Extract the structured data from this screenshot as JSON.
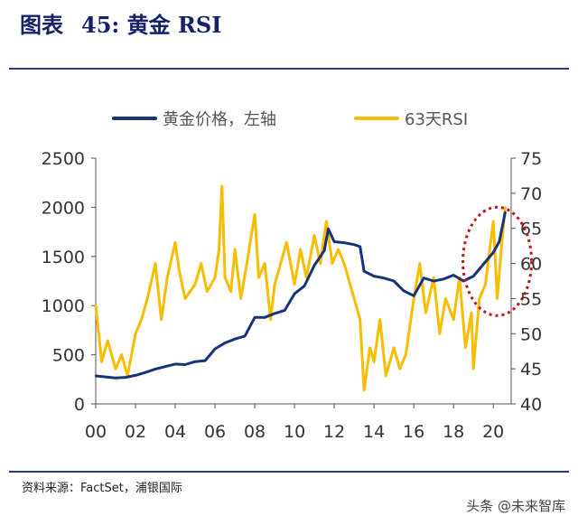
{
  "header": {
    "label": "图表",
    "number": "45:",
    "title": "黄金 RSI"
  },
  "legend": {
    "gold_price": "黄金价格，左轴",
    "rsi": "63天RSI"
  },
  "source": "资料来源：FactSet，浦银国际",
  "watermark": "头条 @未来智库",
  "colors": {
    "gold": "#17337a",
    "rsi": "#f7bd00",
    "title": "#17206b",
    "annotation": "#c1121f"
  },
  "chart_data": {
    "type": "line",
    "x_ticks": [
      "00",
      "02",
      "04",
      "06",
      "08",
      "10",
      "12",
      "14",
      "16",
      "18",
      "20"
    ],
    "x_range": [
      2000,
      2020.9
    ],
    "left_axis": {
      "ylim": [
        0,
        2500
      ],
      "ticks": [
        0,
        500,
        1000,
        1500,
        2000,
        2500
      ]
    },
    "right_axis": {
      "ylim": [
        40,
        75
      ],
      "ticks": [
        40,
        45,
        50,
        55,
        60,
        65,
        70,
        75
      ]
    },
    "series": [
      {
        "name": "黄金价格，左轴",
        "axis": "left",
        "x": [
          2000,
          2001,
          2001.5,
          2002,
          2002.5,
          2003,
          2003.5,
          2004,
          2004.5,
          2005,
          2005.5,
          2006,
          2006.5,
          2007,
          2007.5,
          2008,
          2008.5,
          2009,
          2009.5,
          2010,
          2010.5,
          2011,
          2011.5,
          2011.7,
          2012,
          2012.5,
          2013,
          2013.3,
          2013.5,
          2014,
          2014.5,
          2015,
          2015.5,
          2016,
          2016.5,
          2017,
          2017.5,
          2018,
          2018.5,
          2019,
          2019.5,
          2020,
          2020.3,
          2020.6
        ],
        "values": [
          285,
          265,
          270,
          290,
          320,
          355,
          380,
          405,
          400,
          430,
          440,
          560,
          620,
          660,
          690,
          880,
          880,
          920,
          950,
          1120,
          1200,
          1410,
          1560,
          1780,
          1650,
          1640,
          1620,
          1600,
          1350,
          1300,
          1280,
          1250,
          1150,
          1100,
          1280,
          1250,
          1270,
          1310,
          1250,
          1300,
          1420,
          1540,
          1650,
          1950
        ]
      },
      {
        "name": "63天RSI",
        "axis": "right",
        "x": [
          2000,
          2000.3,
          2000.6,
          2001,
          2001.3,
          2001.6,
          2002,
          2002.3,
          2002.6,
          2003,
          2003.3,
          2003.6,
          2004,
          2004.2,
          2004.5,
          2005,
          2005.3,
          2005.6,
          2006,
          2006.2,
          2006.35,
          2006.5,
          2006.8,
          2007,
          2007.3,
          2007.6,
          2008,
          2008.2,
          2008.5,
          2008.8,
          2009,
          2009.3,
          2009.6,
          2010,
          2010.3,
          2010.6,
          2011,
          2011.3,
          2011.6,
          2011.9,
          2012.2,
          2012.5,
          2012.8,
          2013,
          2013.3,
          2013.5,
          2013.8,
          2014,
          2014.3,
          2014.6,
          2015,
          2015.3,
          2015.6,
          2016,
          2016.3,
          2016.6,
          2017,
          2017.3,
          2017.6,
          2018,
          2018.3,
          2018.6,
          2018.9,
          2019,
          2019.3,
          2019.6,
          2020,
          2020.2,
          2020.4,
          2020.6
        ],
        "values": [
          54,
          46,
          49,
          45,
          47,
          44,
          50,
          52,
          55,
          60,
          52,
          58,
          63,
          59,
          55,
          57,
          60,
          56,
          58,
          62,
          71,
          58,
          56,
          62,
          55,
          60,
          67,
          58,
          60,
          52,
          57,
          60,
          63,
          57,
          62,
          58,
          64,
          60,
          66,
          60,
          62,
          60,
          57,
          55,
          52,
          42,
          48,
          46,
          52,
          44,
          48,
          45,
          47,
          55,
          60,
          53,
          58,
          50,
          55,
          52,
          58,
          48,
          53,
          45,
          55,
          57,
          66,
          55,
          62,
          68
        ]
      }
    ],
    "annotation": {
      "shape": "dashed-ellipse",
      "x_center": 2020.2,
      "y_left_center": 1450
    }
  }
}
